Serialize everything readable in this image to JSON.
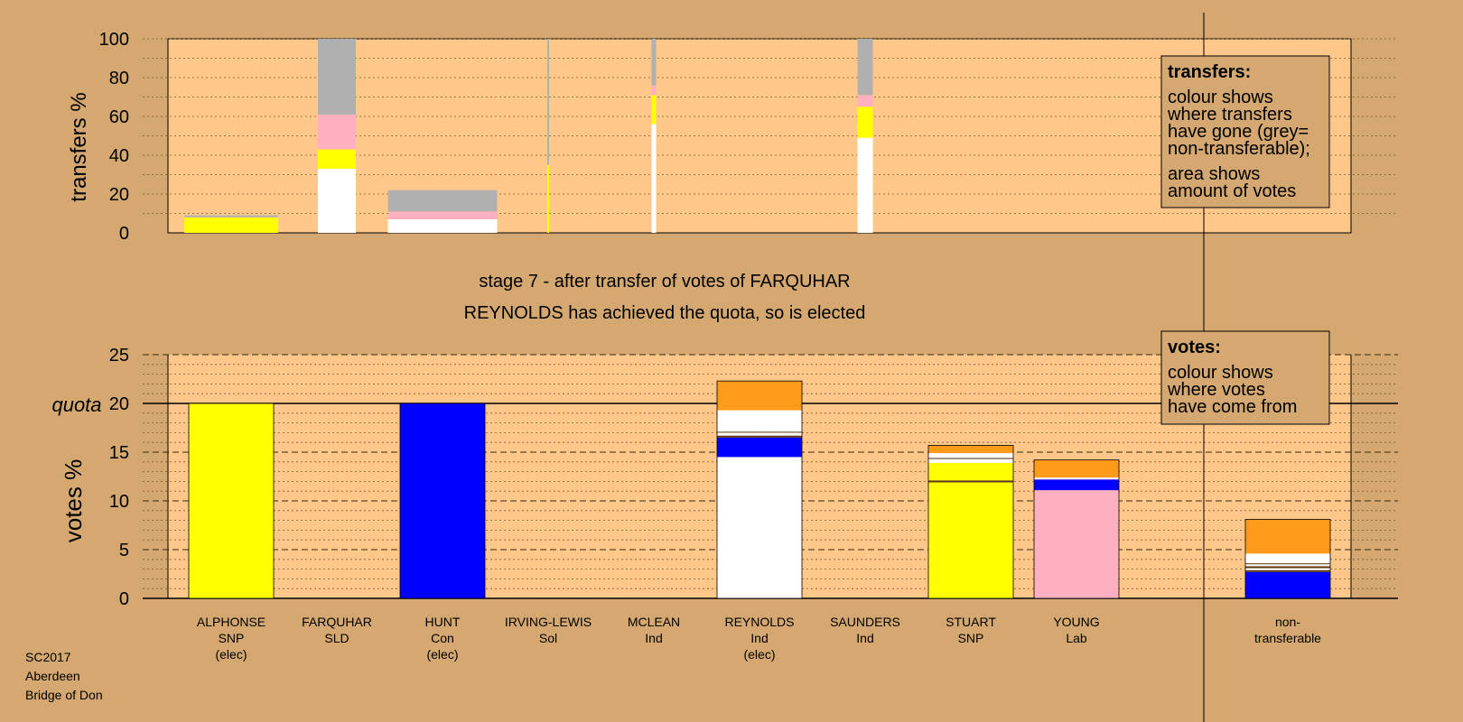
{
  "footer": {
    "line1": "SC2017",
    "line2": "Aberdeen",
    "line3": "Bridge of Don"
  },
  "stage_title": "stage 7 - after transfer of votes of FARQUHAR",
  "stage_subtitle": "REYNOLDS has achieved the quota, so is elected",
  "legend_transfers": {
    "title": "transfers:",
    "lines": [
      "colour shows",
      "where transfers",
      "have gone (grey=",
      "non-transferable);",
      "area shows",
      "amount of votes"
    ]
  },
  "legend_votes": {
    "title": "votes:",
    "lines": [
      "colour shows",
      "where votes",
      "have come from"
    ]
  },
  "colors": {
    "background": "#d4a870",
    "plot_bg": "#ffc88a",
    "SNP": "#ffff00",
    "Con": "#0000ff",
    "Lab": "#ffb0c0",
    "Ind": "#ffffff",
    "Ind2": "#ff9a1a",
    "grey": "#b0b0b0",
    "dark": "#5a3a1a"
  },
  "chart_data": [
    {
      "type": "bar",
      "name": "transfers",
      "ylabel": "transfers %",
      "ylim": [
        0,
        100
      ],
      "yticks": [
        0,
        20,
        40,
        60,
        80,
        100
      ],
      "bars": [
        {
          "candidate": "ALPHONSE",
          "width_share": 0.62,
          "segments": [
            {
              "color": "SNP",
              "value": 8
            },
            {
              "color": "grey",
              "value": 1
            }
          ]
        },
        {
          "candidate": "FARQUHAR",
          "width_share": 0.25,
          "segments": [
            {
              "color": "Ind",
              "value": 33
            },
            {
              "color": "SNP",
              "value": 10
            },
            {
              "color": "Lab",
              "value": 18
            },
            {
              "color": "grey",
              "value": 39
            }
          ]
        },
        {
          "candidate": "HUNT",
          "width_share": 0.72,
          "segments": [
            {
              "color": "Ind",
              "value": 7
            },
            {
              "color": "Lab",
              "value": 4
            },
            {
              "color": "grey",
              "value": 11
            }
          ]
        },
        {
          "candidate": "IRVING-LEWIS",
          "width_share": 0.01,
          "segments": [
            {
              "color": "SNP",
              "value": 35
            },
            {
              "color": "grey",
              "value": 65
            }
          ]
        },
        {
          "candidate": "MCLEAN",
          "width_share": 0.03,
          "segments": [
            {
              "color": "Ind",
              "value": 56
            },
            {
              "color": "SNP",
              "value": 15
            },
            {
              "color": "Lab",
              "value": 5
            },
            {
              "color": "grey",
              "value": 24
            }
          ]
        },
        {
          "candidate": "SAUNDERS",
          "width_share": 0.1,
          "segments": [
            {
              "color": "Ind",
              "value": 49
            },
            {
              "color": "SNP",
              "value": 16
            },
            {
              "color": "Lab",
              "value": 6
            },
            {
              "color": "grey",
              "value": 29
            }
          ]
        }
      ]
    },
    {
      "type": "bar",
      "name": "votes",
      "ylabel": "votes %",
      "ylim": [
        0,
        25
      ],
      "yticks": [
        0,
        5,
        10,
        15,
        20,
        25
      ],
      "quota": 20,
      "quota_label": "quota",
      "bars": [
        {
          "candidate": "ALPHONSE",
          "party": "SNP",
          "note": "(elec)",
          "segments": [
            {
              "color": "SNP",
              "value": 20
            }
          ]
        },
        {
          "candidate": "FARQUHAR",
          "party": "SLD",
          "note": "",
          "segments": []
        },
        {
          "candidate": "HUNT",
          "party": "Con",
          "note": "(elec)",
          "segments": [
            {
              "color": "Con",
              "value": 20
            }
          ]
        },
        {
          "candidate": "IRVING-LEWIS",
          "party": "Sol",
          "note": "",
          "segments": []
        },
        {
          "candidate": "MCLEAN",
          "party": "Ind",
          "note": "",
          "segments": []
        },
        {
          "candidate": "REYNOLDS",
          "party": "Ind",
          "note": "(elec)",
          "segments": [
            {
              "color": "Ind",
              "value": 14.5
            },
            {
              "color": "Con",
              "value": 2
            },
            {
              "color": "dark",
              "value": 0.2
            },
            {
              "color": "Ind",
              "value": 0.3
            },
            {
              "color": "dark",
              "value": 0.1
            },
            {
              "color": "Ind",
              "value": 2.2
            },
            {
              "color": "Ind2",
              "value": 3
            }
          ]
        },
        {
          "candidate": "SAUNDERS",
          "party": "Ind",
          "note": "",
          "segments": []
        },
        {
          "candidate": "STUART",
          "party": "SNP",
          "note": "",
          "segments": [
            {
              "color": "SNP",
              "value": 11.9
            },
            {
              "color": "dark",
              "value": 0.2
            },
            {
              "color": "SNP",
              "value": 1.8
            },
            {
              "color": "Ind",
              "value": 0.4
            },
            {
              "color": "dark",
              "value": 0.1
            },
            {
              "color": "Ind",
              "value": 0.5
            },
            {
              "color": "Ind2",
              "value": 0.8
            }
          ]
        },
        {
          "candidate": "YOUNG",
          "party": "Lab",
          "note": "",
          "segments": [
            {
              "color": "Lab",
              "value": 11.1
            },
            {
              "color": "Con",
              "value": 1.1
            },
            {
              "color": "Ind",
              "value": 0.2
            },
            {
              "color": "Ind2",
              "value": 1.8
            }
          ]
        },
        {
          "candidate": "non-",
          "party": "transferable",
          "note": "",
          "segments": [
            {
              "color": "Con",
              "value": 2.7
            },
            {
              "color": "dark",
              "value": 0.2
            },
            {
              "color": "Ind",
              "value": 0.2
            },
            {
              "color": "dark",
              "value": 0.2
            },
            {
              "color": "Ind",
              "value": 0.2
            },
            {
              "color": "dark",
              "value": 0.1
            },
            {
              "color": "Ind",
              "value": 1
            },
            {
              "color": "Ind2",
              "value": 3.5
            }
          ]
        }
      ]
    }
  ]
}
